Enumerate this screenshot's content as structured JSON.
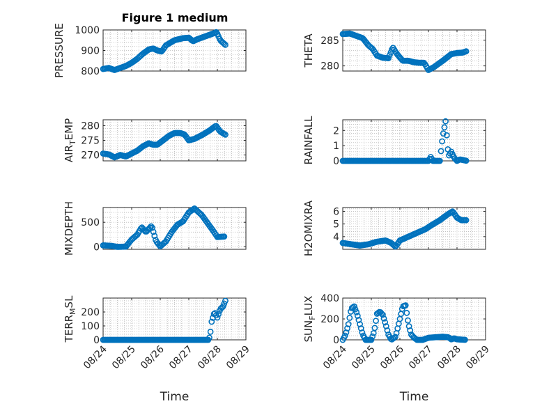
{
  "figure": {
    "title": "Figure 1 medium",
    "marker_color": "#0072bd",
    "x_tick_labels": [
      "08/24",
      "08/25",
      "08/26",
      "08/27",
      "08/28",
      "08/29"
    ],
    "xlabel": "Time"
  },
  "chart_data": [
    {
      "type": "scatter",
      "ylabel": "PRESSURE",
      "xlim": [
        0,
        5
      ],
      "ylim": [
        800,
        1000
      ],
      "yticks": [
        800,
        900,
        1000
      ],
      "knots": [
        [
          0,
          810
        ],
        [
          0.2,
          815
        ],
        [
          0.4,
          805
        ],
        [
          0.6,
          815
        ],
        [
          0.8,
          825
        ],
        [
          1.0,
          840
        ],
        [
          1.2,
          860
        ],
        [
          1.4,
          885
        ],
        [
          1.6,
          905
        ],
        [
          1.75,
          910
        ],
        [
          1.9,
          900
        ],
        [
          2.05,
          895
        ],
        [
          2.2,
          925
        ],
        [
          2.5,
          950
        ],
        [
          2.8,
          960
        ],
        [
          3.0,
          962
        ],
        [
          3.15,
          945
        ],
        [
          3.3,
          955
        ],
        [
          3.6,
          970
        ],
        [
          3.9,
          985
        ],
        [
          3.97,
          990
        ],
        [
          4.1,
          950
        ],
        [
          4.3,
          925
        ]
      ]
    },
    {
      "type": "scatter",
      "ylabel": "THETA",
      "xlim": [
        0,
        5
      ],
      "ylim": [
        279,
        287
      ],
      "yticks": [
        280,
        285
      ],
      "knots": [
        [
          0,
          286.2
        ],
        [
          0.25,
          286.3
        ],
        [
          0.5,
          285.8
        ],
        [
          0.7,
          285.4
        ],
        [
          0.9,
          284.0
        ],
        [
          1.05,
          283.3
        ],
        [
          1.2,
          282.0
        ],
        [
          1.4,
          281.6
        ],
        [
          1.6,
          281.5
        ],
        [
          1.75,
          283.6
        ],
        [
          1.9,
          282.3
        ],
        [
          2.1,
          281.0
        ],
        [
          2.3,
          281.0
        ],
        [
          2.5,
          280.7
        ],
        [
          2.7,
          280.6
        ],
        [
          2.85,
          280.6
        ],
        [
          3.0,
          279.2
        ],
        [
          3.2,
          279.8
        ],
        [
          3.5,
          281.0
        ],
        [
          3.8,
          282.3
        ],
        [
          4.0,
          282.5
        ],
        [
          4.2,
          282.6
        ],
        [
          4.35,
          282.9
        ]
      ]
    },
    {
      "type": "scatter",
      "ylabel": "AIR_TEMP",
      "ylabel_main": "AIR",
      "ylabel_sub": "T",
      "ylabel_rest": "EMP",
      "xlim": [
        0,
        5
      ],
      "ylim": [
        268,
        282
      ],
      "yticks": [
        270,
        275,
        280
      ],
      "knots": [
        [
          0,
          270.5
        ],
        [
          0.2,
          270.2
        ],
        [
          0.4,
          269.2
        ],
        [
          0.6,
          270.0
        ],
        [
          0.8,
          269.5
        ],
        [
          1.0,
          270.5
        ],
        [
          1.2,
          271.5
        ],
        [
          1.4,
          273.0
        ],
        [
          1.6,
          274.0
        ],
        [
          1.75,
          273.5
        ],
        [
          1.9,
          273.5
        ],
        [
          2.1,
          275.0
        ],
        [
          2.3,
          276.5
        ],
        [
          2.5,
          277.5
        ],
        [
          2.7,
          277.5
        ],
        [
          2.85,
          277.0
        ],
        [
          3.0,
          275.0
        ],
        [
          3.2,
          275.5
        ],
        [
          3.5,
          277.0
        ],
        [
          3.75,
          278.5
        ],
        [
          3.95,
          280.0
        ],
        [
          4.1,
          278.0
        ],
        [
          4.3,
          276.8
        ]
      ]
    },
    {
      "type": "scatter",
      "ylabel": "RAINFALL",
      "xlim": [
        0,
        5
      ],
      "ylim": [
        0,
        2.7
      ],
      "yticks": [
        0,
        1,
        2
      ],
      "knots": [
        [
          0,
          0
        ],
        [
          3.0,
          0
        ],
        [
          3.08,
          0.25
        ],
        [
          3.16,
          0
        ],
        [
          3.4,
          0
        ],
        [
          3.5,
          1.6
        ],
        [
          3.6,
          2.6
        ],
        [
          3.7,
          0.3
        ],
        [
          3.8,
          0.6
        ],
        [
          3.9,
          0.2
        ],
        [
          4.0,
          0
        ],
        [
          4.1,
          0.1
        ],
        [
          4.35,
          0
        ]
      ]
    },
    {
      "type": "scatter",
      "ylabel": "MIXDEPTH",
      "xlim": [
        0,
        5
      ],
      "ylim": [
        -50,
        800
      ],
      "yticks": [
        0,
        500
      ],
      "knots": [
        [
          0,
          30
        ],
        [
          0.3,
          20
        ],
        [
          0.5,
          0
        ],
        [
          0.8,
          5
        ],
        [
          1.0,
          150
        ],
        [
          1.2,
          250
        ],
        [
          1.35,
          400
        ],
        [
          1.5,
          300
        ],
        [
          1.7,
          430
        ],
        [
          1.85,
          120
        ],
        [
          2.0,
          10
        ],
        [
          2.2,
          110
        ],
        [
          2.4,
          300
        ],
        [
          2.6,
          450
        ],
        [
          2.8,
          520
        ],
        [
          3.0,
          700
        ],
        [
          3.2,
          780
        ],
        [
          3.45,
          650
        ],
        [
          3.7,
          450
        ],
        [
          3.85,
          330
        ],
        [
          4.0,
          200
        ],
        [
          4.25,
          210
        ]
      ]
    },
    {
      "type": "scatter",
      "ylabel": "H2OMIXRA",
      "xlim": [
        0,
        5
      ],
      "ylim": [
        3,
        6.3
      ],
      "yticks": [
        4,
        5,
        6
      ],
      "knots": [
        [
          0,
          3.5
        ],
        [
          0.3,
          3.4
        ],
        [
          0.6,
          3.3
        ],
        [
          0.9,
          3.4
        ],
        [
          1.2,
          3.6
        ],
        [
          1.5,
          3.7
        ],
        [
          1.7,
          3.5
        ],
        [
          1.85,
          3.2
        ],
        [
          2.0,
          3.7
        ],
        [
          2.3,
          4.0
        ],
        [
          2.6,
          4.3
        ],
        [
          2.9,
          4.6
        ],
        [
          3.1,
          4.9
        ],
        [
          3.4,
          5.3
        ],
        [
          3.7,
          5.8
        ],
        [
          3.85,
          6.0
        ],
        [
          4.0,
          5.5
        ],
        [
          4.15,
          5.3
        ],
        [
          4.35,
          5.3
        ]
      ]
    },
    {
      "type": "scatter",
      "ylabel": "TERR_MSL",
      "ylabel_main": "TERR",
      "ylabel_sub": "M",
      "ylabel_rest": "SL",
      "xlim": [
        0,
        5
      ],
      "ylim": [
        0,
        300
      ],
      "yticks": [
        0,
        100,
        200
      ],
      "knots": [
        [
          0,
          0
        ],
        [
          3.7,
          0
        ],
        [
          3.75,
          40
        ],
        [
          3.8,
          130
        ],
        [
          3.9,
          200
        ],
        [
          4.0,
          160
        ],
        [
          4.1,
          220
        ],
        [
          4.2,
          240
        ],
        [
          4.3,
          290
        ]
      ]
    },
    {
      "type": "scatter",
      "ylabel": "SUN_FLUX",
      "ylabel_main": "SUN",
      "ylabel_sub": "F",
      "ylabel_rest": "LUX",
      "xlim": [
        0,
        5
      ],
      "ylim": [
        0,
        400
      ],
      "yticks": [
        0,
        200,
        400
      ],
      "knots": [
        [
          0,
          0
        ],
        [
          0.1,
          50
        ],
        [
          0.2,
          150
        ],
        [
          0.3,
          300
        ],
        [
          0.4,
          320
        ],
        [
          0.5,
          250
        ],
        [
          0.6,
          150
        ],
        [
          0.7,
          50
        ],
        [
          0.8,
          0
        ],
        [
          1.0,
          0
        ],
        [
          1.1,
          80
        ],
        [
          1.2,
          250
        ],
        [
          1.3,
          270
        ],
        [
          1.4,
          240
        ],
        [
          1.5,
          150
        ],
        [
          1.6,
          50
        ],
        [
          1.7,
          0
        ],
        [
          1.85,
          30
        ],
        [
          2.0,
          200
        ],
        [
          2.1,
          320
        ],
        [
          2.2,
          330
        ],
        [
          2.3,
          150
        ],
        [
          2.4,
          50
        ],
        [
          2.5,
          20
        ],
        [
          2.6,
          0
        ],
        [
          2.8,
          0
        ],
        [
          3.0,
          20
        ],
        [
          3.5,
          30
        ],
        [
          3.7,
          25
        ],
        [
          3.8,
          5
        ],
        [
          3.9,
          15
        ],
        [
          4.0,
          5
        ],
        [
          4.3,
          0
        ]
      ]
    }
  ]
}
